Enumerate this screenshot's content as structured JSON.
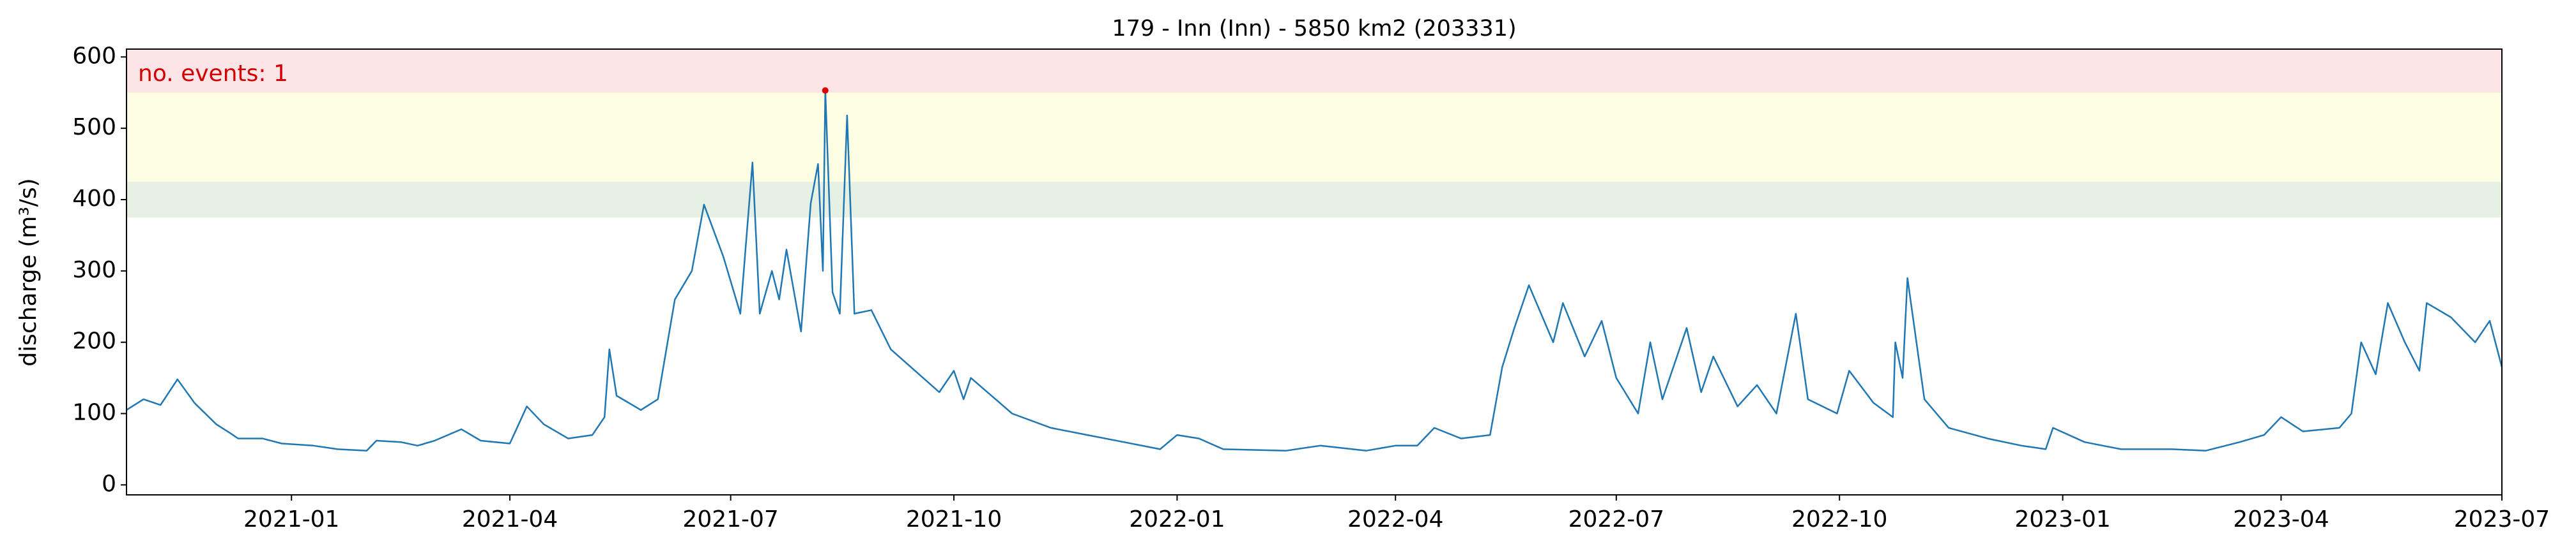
{
  "chart_data": {
    "type": "line",
    "title": "179 - Inn (Inn) - 5850 km2 (203331)",
    "y_label": "discharge (m³/s)",
    "annotation": "no. events: 1",
    "annotation_color": "#d40000",
    "xlim": [
      "2020-10-25",
      "2023-07-01"
    ],
    "xticks": [
      "2021-01",
      "2021-04",
      "2021-07",
      "2021-10",
      "2022-01",
      "2022-04",
      "2022-07",
      "2022-10",
      "2023-01",
      "2023-04",
      "2023-07"
    ],
    "ylim": [
      -14,
      611
    ],
    "yticks": [
      0,
      100,
      200,
      300,
      400,
      500,
      600
    ],
    "grid": false,
    "bands": [
      {
        "from": 375,
        "to": 425,
        "color": "#e6f0e3"
      },
      {
        "from": 425,
        "to": 550,
        "color": "#fefee2"
      },
      {
        "from": 550,
        "to": 611,
        "color": "#fde4e7"
      }
    ],
    "x": [
      "2020-10-25",
      "2020-11-01",
      "2020-11-08",
      "2020-11-15",
      "2020-11-22",
      "2020-12-01",
      "2020-12-07",
      "2020-12-10",
      "2020-12-20",
      "2020-12-28",
      "2021-01-10",
      "2021-01-20",
      "2021-02-01",
      "2021-02-05",
      "2021-02-15",
      "2021-02-22",
      "2021-03-01",
      "2021-03-12",
      "2021-03-20",
      "2021-04-01",
      "2021-04-08",
      "2021-04-15",
      "2021-04-25",
      "2021-05-05",
      "2021-05-10",
      "2021-05-12",
      "2021-05-15",
      "2021-05-25",
      "2021-06-01",
      "2021-06-08",
      "2021-06-15",
      "2021-06-20",
      "2021-06-28",
      "2021-07-05",
      "2021-07-10",
      "2021-07-13",
      "2021-07-18",
      "2021-07-21",
      "2021-07-24",
      "2021-07-30",
      "2021-08-03",
      "2021-08-06",
      "2021-08-08",
      "2021-08-09",
      "2021-08-12",
      "2021-08-15",
      "2021-08-18",
      "2021-08-21",
      "2021-08-28",
      "2021-09-05",
      "2021-09-15",
      "2021-09-25",
      "2021-10-01",
      "2021-10-05",
      "2021-10-08",
      "2021-10-25",
      "2021-11-10",
      "2021-11-25",
      "2021-12-10",
      "2021-12-25",
      "2022-01-01",
      "2022-01-10",
      "2022-01-20",
      "2022-02-15",
      "2022-03-01",
      "2022-03-20",
      "2022-04-01",
      "2022-04-10",
      "2022-04-17",
      "2022-04-28",
      "2022-05-10",
      "2022-05-15",
      "2022-05-20",
      "2022-05-26",
      "2022-06-05",
      "2022-06-09",
      "2022-06-18",
      "2022-06-25",
      "2022-07-01",
      "2022-07-10",
      "2022-07-15",
      "2022-07-20",
      "2022-07-30",
      "2022-08-05",
      "2022-08-10",
      "2022-08-20",
      "2022-08-28",
      "2022-09-05",
      "2022-09-13",
      "2022-09-18",
      "2022-09-30",
      "2022-10-05",
      "2022-10-15",
      "2022-10-23",
      "2022-10-24",
      "2022-10-27",
      "2022-10-29",
      "2022-11-05",
      "2022-11-15",
      "2022-12-01",
      "2022-12-15",
      "2022-12-25",
      "2022-12-28",
      "2023-01-10",
      "2023-01-25",
      "2023-02-15",
      "2023-03-01",
      "2023-03-15",
      "2023-03-25",
      "2023-04-01",
      "2023-04-10",
      "2023-04-25",
      "2023-04-30",
      "2023-05-04",
      "2023-05-10",
      "2023-05-15",
      "2023-05-22",
      "2023-05-28",
      "2023-05-31",
      "2023-06-10",
      "2023-06-20",
      "2023-06-26",
      "2023-07-01"
    ],
    "series": [
      {
        "name": "discharge",
        "color": "#1f77b4",
        "values": [
          105,
          120,
          112,
          148,
          115,
          85,
          72,
          65,
          65,
          58,
          55,
          50,
          48,
          62,
          60,
          55,
          62,
          78,
          62,
          58,
          110,
          85,
          65,
          70,
          95,
          190,
          125,
          105,
          120,
          260,
          300,
          393,
          320,
          240,
          452,
          240,
          300,
          260,
          330,
          215,
          395,
          450,
          300,
          553,
          270,
          240,
          518,
          240,
          245,
          190,
          160,
          130,
          160,
          120,
          150,
          100,
          80,
          70,
          60,
          50,
          70,
          65,
          50,
          48,
          55,
          48,
          55,
          55,
          80,
          65,
          70,
          165,
          220,
          280,
          200,
          255,
          180,
          230,
          150,
          100,
          200,
          120,
          220,
          130,
          180,
          110,
          140,
          100,
          240,
          120,
          100,
          160,
          115,
          95,
          200,
          150,
          290,
          120,
          80,
          65,
          55,
          50,
          80,
          60,
          50,
          50,
          48,
          60,
          70,
          95,
          75,
          80,
          100,
          200,
          155,
          255,
          200,
          160,
          255,
          235,
          200,
          230,
          165
        ]
      }
    ],
    "events": {
      "x": [
        "2021-08-09"
      ],
      "values": [
        553
      ],
      "color": "#e00000"
    }
  }
}
